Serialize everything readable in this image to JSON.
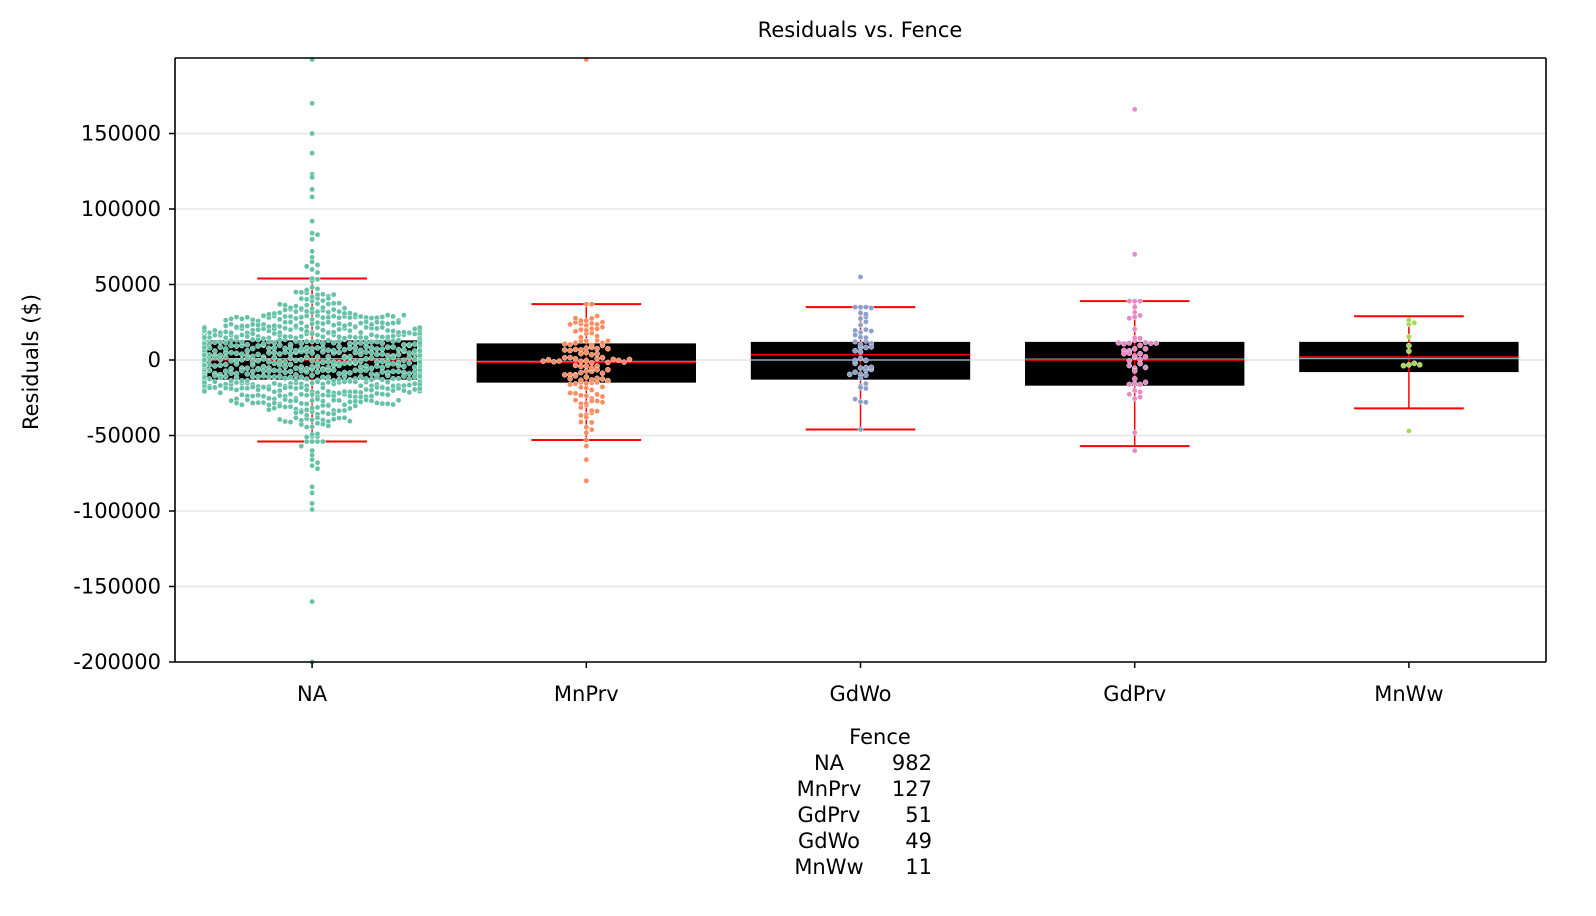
{
  "chart_data": {
    "type": "box",
    "title": "Residuals vs. Fence",
    "xlabel": "",
    "ylabel": "Residuals ($)",
    "ylim": [
      -200000,
      200000
    ],
    "yticks": [
      "150000",
      "100000",
      "50000",
      "0",
      "-50000",
      "-100000",
      "-150000",
      "-200000"
    ],
    "grid": "horizontal",
    "categories": [
      "NA",
      "MnPrv",
      "GdWo",
      "GdPrv",
      "MnWw"
    ],
    "colors": [
      "#66c2a5",
      "#fc8d62",
      "#8da0cb",
      "#e78ac3",
      "#a6d854"
    ],
    "boxes": [
      {
        "name": "NA",
        "q1": -13000,
        "median": 0,
        "mean": 800,
        "q3": 13000,
        "whisker_low": -54000,
        "whisker_high": 54000,
        "n_points": 982
      },
      {
        "name": "MnPrv",
        "q1": -15000,
        "median": -1500,
        "mean": -1000,
        "q3": 11000,
        "whisker_low": -53000,
        "whisker_high": 37000,
        "n_points": 127
      },
      {
        "name": "GdWo",
        "q1": -13000,
        "median": 3500,
        "mean": 0,
        "q3": 12000,
        "whisker_low": -46000,
        "whisker_high": 35000,
        "n_points": 49
      },
      {
        "name": "GdPrv",
        "q1": -17000,
        "median": 0,
        "mean": 500,
        "q3": 12000,
        "whisker_low": -57000,
        "whisker_high": 39000,
        "n_points": 51
      },
      {
        "name": "MnWw",
        "q1": -8000,
        "median": 2000,
        "mean": 1000,
        "q3": 12000,
        "whisker_low": -32000,
        "whisker_high": 29000,
        "n_points": 11
      }
    ],
    "outliers": [
      [
        199000,
        170000,
        150000,
        137000,
        123000,
        121000,
        113000,
        108000,
        92000,
        84000,
        83000,
        80000,
        72000,
        68000,
        65000,
        63000,
        62000,
        60000,
        58000,
        -57000,
        -60000,
        -63000,
        -66000,
        -68000,
        -70000,
        -72000,
        -84000,
        -88000,
        -95000,
        -99000,
        -160000,
        -200000
      ],
      [
        199000,
        -57000,
        -66000,
        -80000
      ],
      [
        55000,
        -46000
      ],
      [
        166000,
        70000,
        -60000
      ],
      [
        -47000
      ]
    ]
  },
  "caption": {
    "title": "Fence",
    "rows": [
      {
        "name": "NA",
        "count": "982"
      },
      {
        "name": "MnPrv",
        "count": "127"
      },
      {
        "name": "GdPrv",
        "count": "51"
      },
      {
        "name": "GdWo",
        "count": "49"
      },
      {
        "name": "MnWw",
        "count": "11"
      }
    ]
  }
}
